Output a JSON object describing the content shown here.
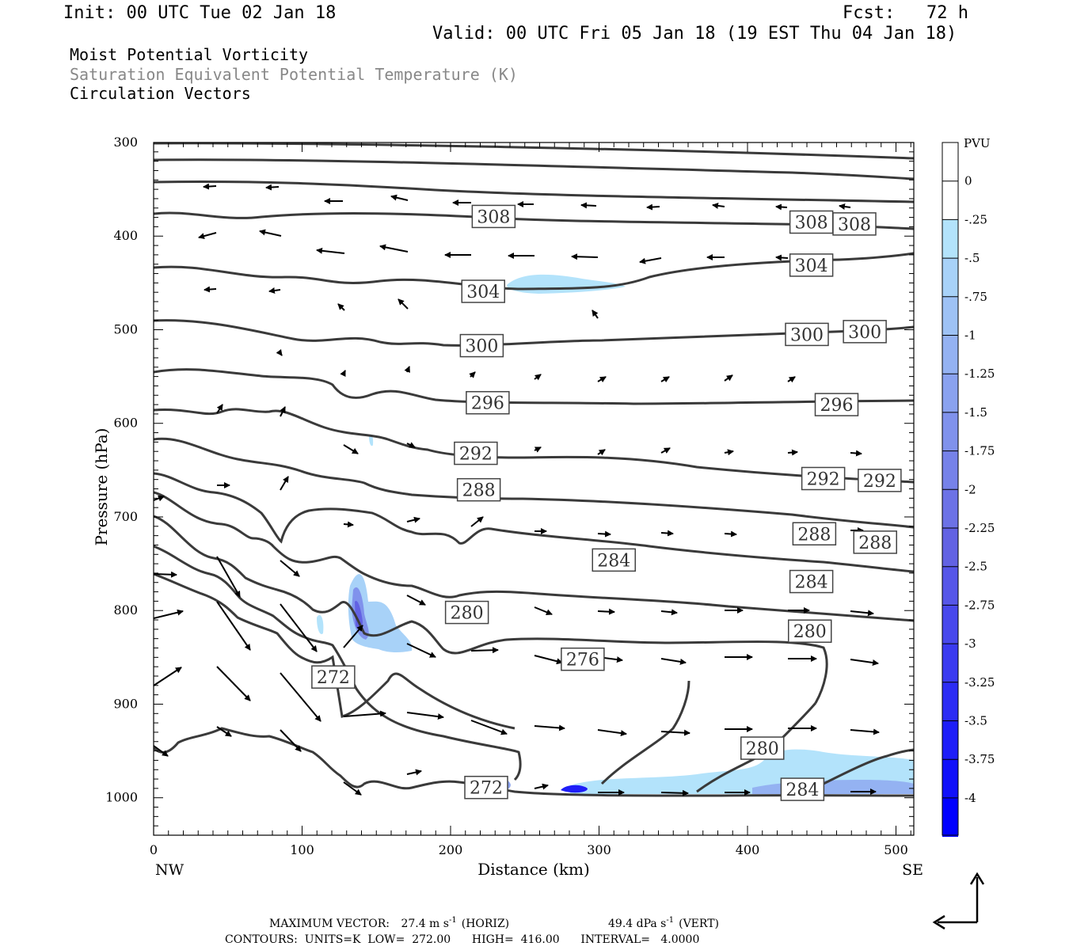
{
  "header": {
    "init": "Init: 00 UTC Tue 02 Jan 18",
    "fcst": "Fcst:   72 h",
    "valid": "Valid: 00 UTC Fri 05 Jan 18 (19 EST Thu 04 Jan 18)",
    "fields": [
      "Moist Potential Vorticity",
      "Saturation Equivalent Potential Temperature (K)",
      "Circulation Vectors"
    ]
  },
  "colors": {
    "contour": "#3a3a3a",
    "vector": "#000000",
    "field_gray": "#888888",
    "pvu_palette": [
      "#ffffff",
      "#ffffff",
      "#b3e3fb",
      "#a8d2f8",
      "#9ec2f5",
      "#94b2f2",
      "#8aa2ef",
      "#8092ec",
      "#7682e9",
      "#6c72e6",
      "#6262e3",
      "#5656e8",
      "#4848ec",
      "#3a3af0",
      "#2c2cf4",
      "#1e1ef8",
      "#1010fa",
      "#0000ff"
    ]
  },
  "footer": {
    "max_vector_label": "MAXIMUM VECTOR:",
    "horiz_value": "27.4 m s",
    "horiz_unit": "(HORIZ)",
    "vert_value": "49.4 dPa s",
    "vert_unit": "(VERT)",
    "exp": "-1",
    "contours": "CONTOURS:  UNITS=K  LOW=  272.00      HIGH=  416.00      INTERVAL=   4.0000"
  },
  "chart_data": {
    "type": "contour",
    "xlabel": "Distance (km)",
    "ylabel": "Pressure (hPa)",
    "x_ticks": [
      0,
      100,
      200,
      300,
      400,
      500
    ],
    "y_ticks": [
      300,
      400,
      500,
      600,
      700,
      800,
      900,
      1000
    ],
    "xlim": [
      0,
      512
    ],
    "ylim": [
      300,
      1040
    ],
    "y_reversed": true,
    "x_end_labels": {
      "left": "NW",
      "right": "SE"
    },
    "colorbar": {
      "title": "PVU",
      "labels": [
        "0",
        "-.25",
        "-.5",
        "-.75",
        "-1",
        "-1.25",
        "-1.5",
        "-1.75",
        "-2",
        "-2.25",
        "-2.5",
        "-2.75",
        "-3",
        "-3.25",
        "-3.5",
        "-3.75",
        "-4"
      ]
    },
    "contour_labels": [
      {
        "text": "308",
        "x": 229,
        "p": 379
      },
      {
        "text": "308",
        "x": 443,
        "p": 385
      },
      {
        "text": "308",
        "x": 472,
        "p": 387
      },
      {
        "text": "304",
        "x": 443,
        "p": 431
      },
      {
        "text": "304",
        "x": 222,
        "p": 459
      },
      {
        "text": "300",
        "x": 440,
        "p": 505
      },
      {
        "text": "300",
        "x": 479,
        "p": 502
      },
      {
        "text": "300",
        "x": 221,
        "p": 517
      },
      {
        "text": "296",
        "x": 225,
        "p": 578
      },
      {
        "text": "296",
        "x": 460,
        "p": 580
      },
      {
        "text": "292",
        "x": 217,
        "p": 632
      },
      {
        "text": "292",
        "x": 451,
        "p": 659
      },
      {
        "text": "292",
        "x": 489,
        "p": 661
      },
      {
        "text": "288",
        "x": 219,
        "p": 671
      },
      {
        "text": "288",
        "x": 445,
        "p": 718
      },
      {
        "text": "288",
        "x": 486,
        "p": 727
      },
      {
        "text": "284",
        "x": 310,
        "p": 746
      },
      {
        "text": "284",
        "x": 443,
        "p": 769
      },
      {
        "text": "280",
        "x": 211,
        "p": 802
      },
      {
        "text": "280",
        "x": 442,
        "p": 822
      },
      {
        "text": "276",
        "x": 289,
        "p": 852
      },
      {
        "text": "272",
        "x": 121,
        "p": 871
      },
      {
        "text": "280",
        "x": 410,
        "p": 947
      },
      {
        "text": "272",
        "x": 224,
        "p": 989
      },
      {
        "text": "284",
        "x": 437,
        "p": 991
      }
    ],
    "pv_regions": [
      {
        "name": "upper",
        "x": [
          236,
          318
        ],
        "p": [
          443,
          468
        ],
        "pvu": -0.25
      },
      {
        "name": "mid",
        "x": [
          133,
          176
        ],
        "p": [
          743,
          845
        ],
        "pvu": -2.75
      },
      {
        "name": "surface-left",
        "x": [
          226,
          242
        ],
        "p": [
          978,
          998
        ],
        "pvu": -1.5
      },
      {
        "name": "surface-right",
        "x": [
          285,
          512
        ],
        "p": [
          945,
          1000
        ],
        "pvu": -0.5
      },
      {
        "name": "surface-core",
        "x": [
          276,
          293
        ],
        "p": [
          990,
          1000
        ],
        "pvu": -3.75
      }
    ]
  }
}
